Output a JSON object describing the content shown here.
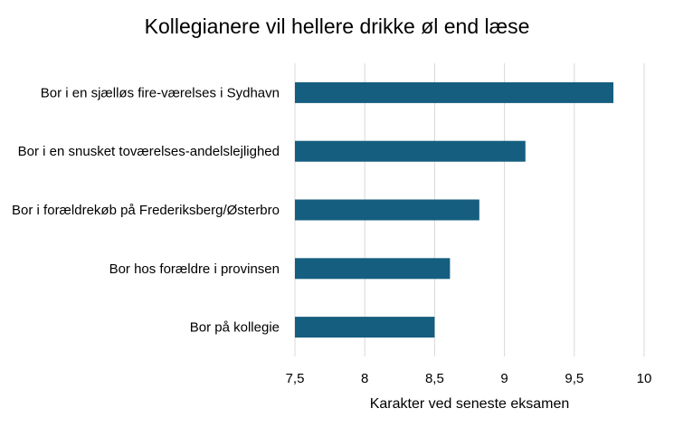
{
  "chart_data": {
    "type": "bar",
    "orientation": "horizontal",
    "title": "Kollegianere vil hellere drikke øl end læse",
    "xlabel": "Karakter ved seneste eksamen",
    "ylabel": "",
    "categories": [
      "Bor i en sjælløs fire-værelses i Sydhavn",
      "Bor i en snusket toværelses-andelslejlighed",
      "Bor i forældrekøb på Frederiksberg/Østerbro",
      "Bor hos forældre i provinsen",
      "Bor på kollegie"
    ],
    "values": [
      9.78,
      9.15,
      8.82,
      8.61,
      8.5
    ],
    "xlim": [
      7.5,
      10
    ],
    "xticks": [
      "7,5",
      "8",
      "8,5",
      "9",
      "9,5",
      "10"
    ],
    "grid": "vertical",
    "bar_color": "#155e80",
    "grid_color": "#d9d9d9"
  }
}
